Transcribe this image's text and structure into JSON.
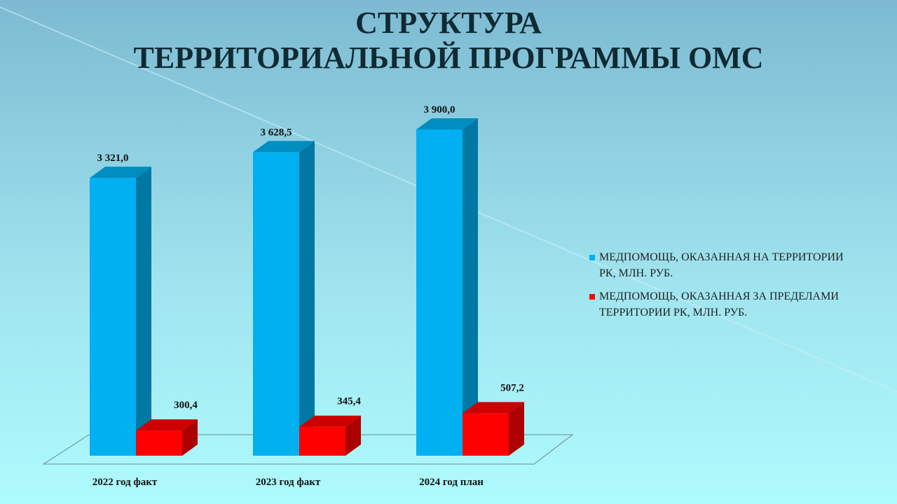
{
  "chart_data": {
    "type": "bar3d",
    "title": [
      "СТРУКТУРА",
      "ТЕРРИТОРИАЛЬНОЙ ПРОГРАММЫ ОМС"
    ],
    "categories": [
      "2022 год факт",
      "2023 год факт",
      "2024 год план"
    ],
    "series": [
      {
        "name": "МЕДПОМОЩЬ, ОКАЗАННАЯ НА ТЕРРИТОРИИ РК, МЛН. РУБ.",
        "color": "#00b0f0",
        "values": [
          3321.0,
          3628.5,
          3900.0
        ],
        "value_labels": [
          "3 321,0",
          "3 628,5",
          "3 900,0"
        ]
      },
      {
        "name": "МЕДПОМОЩЬ, ОКАЗАННАЯ ЗА ПРЕДЕЛАМИ ТЕРРИТОРИИ РК, МЛН. РУБ.",
        "color": "#ff0000",
        "values": [
          300.4,
          345.4,
          507.2
        ],
        "value_labels": [
          "300,4",
          "345,4",
          "507,2"
        ]
      }
    ]
  }
}
